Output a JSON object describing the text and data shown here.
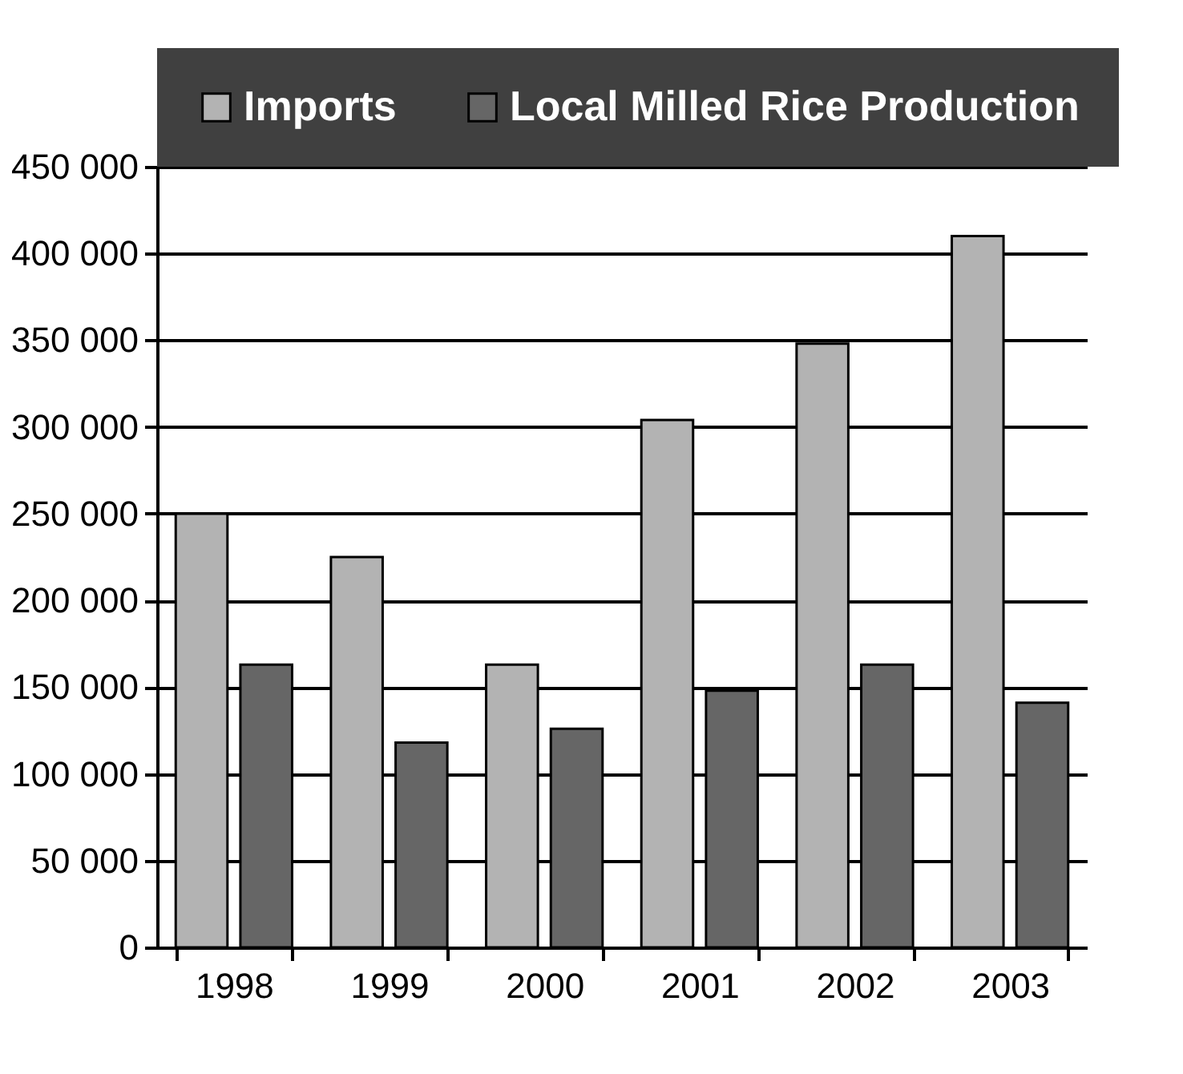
{
  "chart_data": {
    "type": "bar",
    "categories": [
      "1998",
      "1999",
      "2000",
      "2001",
      "2002",
      "2003"
    ],
    "series": [
      {
        "name": "Imports",
        "color": "#b3b3b3",
        "values": [
          250000,
          225000,
          163000,
          304000,
          348000,
          410000
        ]
      },
      {
        "name": "Local Milled Rice Production",
        "color": "#666666",
        "values": [
          163000,
          118000,
          126000,
          148000,
          163000,
          141000
        ]
      }
    ],
    "ylim": [
      0,
      450000
    ],
    "yticks": [
      0,
      {
        "value": 50000,
        "label": "50 000"
      },
      {
        "value": 100000,
        "label": "100 000"
      },
      {
        "value": 150000,
        "label": "150 000"
      },
      {
        "value": 200000,
        "label": "200 000"
      },
      {
        "value": 250000,
        "label": "250 000"
      },
      {
        "value": 300000,
        "label": "300 000"
      },
      {
        "value": 350000,
        "label": "350 000"
      },
      {
        "value": 400000,
        "label": "400 000"
      },
      {
        "value": 450000,
        "label": "450 000"
      }
    ],
    "grid": "y",
    "legend": "top"
  }
}
